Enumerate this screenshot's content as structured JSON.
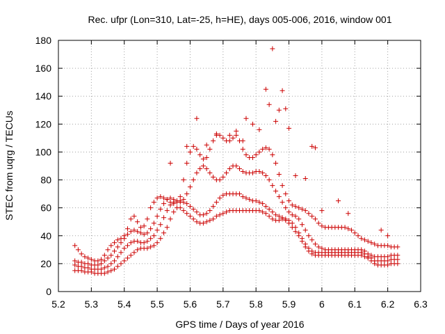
{
  "chart_data": {
    "type": "scatter",
    "title": "Rec. ufpr (Lon=310, Lat=-25, h=HE), days 005-006, 2016, window 001",
    "xlabel": "GPS time / Days of year 2016",
    "ylabel": "STEC from uqrg / TECUs",
    "xlim": [
      5.2,
      6.3
    ],
    "ylim": [
      0,
      180
    ],
    "xticks": [
      "5.2",
      "5.3",
      "5.4",
      "5.5",
      "5.6",
      "5.7",
      "5.8",
      "5.9",
      "6",
      "6.1",
      "6.2",
      "6.3"
    ],
    "yticks": [
      "0",
      "20",
      "40",
      "60",
      "80",
      "100",
      "120",
      "140",
      "160",
      "180"
    ],
    "grid": true,
    "marker": "plus",
    "color": "#cc0000",
    "series": [
      {
        "x": [
          5.25,
          5.26,
          5.27,
          5.28,
          5.29,
          5.3,
          5.31,
          5.32,
          5.33,
          5.34,
          5.35,
          5.36,
          5.37,
          5.38,
          5.39,
          5.4,
          5.41,
          5.42,
          5.43,
          5.44,
          5.45,
          5.46,
          5.47,
          5.48,
          5.49,
          5.5,
          5.51,
          5.52,
          5.53,
          5.54,
          5.55,
          5.56,
          5.57,
          5.58,
          5.59,
          5.6,
          5.61,
          5.62,
          5.63,
          5.64,
          5.65,
          5.66,
          5.67,
          5.68,
          5.69,
          5.7,
          5.71,
          5.72,
          5.73,
          5.74,
          5.75,
          5.76,
          5.77,
          5.78,
          5.79,
          5.8,
          5.81,
          5.82,
          5.83,
          5.84,
          5.85,
          5.86,
          5.87,
          5.88,
          5.89,
          5.9,
          5.91,
          5.92,
          5.93,
          5.94,
          5.95,
          5.96,
          5.97,
          5.98,
          5.99,
          6.0,
          6.01,
          6.02,
          6.03,
          6.04,
          6.05,
          6.06,
          6.07,
          6.08,
          6.09,
          6.1,
          6.11,
          6.12,
          6.13,
          6.14,
          6.15,
          6.16,
          6.17,
          6.18,
          6.19,
          6.2,
          6.21,
          6.22,
          6.23
        ],
        "y": [
          15,
          15,
          15,
          14,
          14,
          14,
          13,
          13,
          13,
          13,
          14,
          15,
          16,
          18,
          20,
          22,
          24,
          26,
          28,
          30,
          31,
          31,
          31,
          32,
          33,
          35,
          38,
          42,
          46,
          52,
          57,
          60,
          60,
          58,
          56,
          54,
          52,
          50,
          49,
          49,
          50,
          51,
          52,
          54,
          55,
          56,
          57,
          58,
          58,
          58,
          58,
          58,
          58,
          58,
          58,
          58,
          58,
          57,
          56,
          54,
          52,
          51,
          51,
          52,
          51,
          49,
          46,
          43,
          40,
          36,
          32,
          29,
          27,
          26,
          26,
          26,
          26,
          26,
          26,
          26,
          26,
          26,
          26,
          26,
          26,
          26,
          26,
          26,
          25,
          24,
          22,
          20,
          19,
          19,
          19,
          19,
          20,
          20,
          20
        ]
      },
      {
        "x": [
          5.25,
          5.26,
          5.27,
          5.28,
          5.29,
          5.3,
          5.31,
          5.32,
          5.33,
          5.34,
          5.35,
          5.36,
          5.37,
          5.38,
          5.39,
          5.4,
          5.41,
          5.42,
          5.43,
          5.44,
          5.45,
          5.46,
          5.47,
          5.48,
          5.49,
          5.5,
          5.51,
          5.52,
          5.53,
          5.54,
          5.55,
          5.56,
          5.57,
          5.58,
          5.59,
          5.6,
          5.61,
          5.62,
          5.63,
          5.64,
          5.65,
          5.66,
          5.67,
          5.68,
          5.69,
          5.7,
          5.71,
          5.72,
          5.73,
          5.74,
          5.75,
          5.76,
          5.77,
          5.78,
          5.79,
          5.8,
          5.81,
          5.82,
          5.83,
          5.84,
          5.85,
          5.86,
          5.87,
          5.88,
          5.89,
          5.9,
          5.91,
          5.92,
          5.93,
          5.94,
          5.95,
          5.96,
          5.97,
          5.98,
          5.99,
          6.0,
          6.01,
          6.02,
          6.03,
          6.04,
          6.05,
          6.06,
          6.07,
          6.08,
          6.09,
          6.1,
          6.11,
          6.12,
          6.13,
          6.14,
          6.15,
          6.16,
          6.17,
          6.18,
          6.19,
          6.2,
          6.21,
          6.22,
          6.23
        ],
        "y": [
          19,
          18,
          18,
          17,
          17,
          16,
          16,
          16,
          16,
          17,
          18,
          20,
          22,
          25,
          28,
          31,
          33,
          35,
          36,
          36,
          35,
          35,
          36,
          38,
          40,
          44,
          48,
          53,
          58,
          62,
          64,
          65,
          65,
          64,
          63,
          61,
          59,
          57,
          55,
          55,
          56,
          58,
          61,
          64,
          67,
          69,
          70,
          70,
          70,
          70,
          70,
          68,
          67,
          66,
          65,
          65,
          64,
          63,
          61,
          59,
          57,
          55,
          54,
          53,
          52,
          51,
          49,
          46,
          42,
          38,
          34,
          31,
          29,
          28,
          28,
          28,
          28,
          28,
          28,
          28,
          28,
          28,
          28,
          28,
          28,
          28,
          28,
          28,
          27,
          25,
          24,
          22,
          22,
          22,
          22,
          22,
          23,
          23,
          23
        ]
      },
      {
        "x": [
          5.25,
          5.26,
          5.27,
          5.28,
          5.29,
          5.3,
          5.31,
          5.32,
          5.33,
          5.34,
          5.35,
          5.36,
          5.37,
          5.38,
          5.39,
          5.4,
          5.41,
          5.42,
          5.43,
          5.44,
          5.45,
          5.46,
          5.47,
          5.48,
          5.49,
          5.5,
          5.51,
          5.52,
          5.53,
          5.54,
          5.55,
          5.56,
          5.57,
          5.58,
          5.59,
          5.6,
          5.61,
          5.62,
          5.63,
          5.64,
          5.65,
          5.66,
          5.67,
          5.68,
          5.69,
          5.7,
          5.71,
          5.72,
          5.73,
          5.74,
          5.75,
          5.76,
          5.77,
          5.78,
          5.79,
          5.8,
          5.81,
          5.82,
          5.83,
          5.84,
          5.85,
          5.86,
          5.87,
          5.88,
          5.89,
          5.9,
          5.91,
          5.92,
          5.93,
          5.94,
          5.95,
          5.96,
          5.97,
          5.98,
          5.99,
          6.0,
          6.01,
          6.02,
          6.03,
          6.04,
          6.05,
          6.06,
          6.07,
          6.08,
          6.09,
          6.1,
          6.11,
          6.12,
          6.13,
          6.14,
          6.15,
          6.16,
          6.17,
          6.18,
          6.19,
          6.2,
          6.21,
          6.22,
          6.23
        ],
        "y": [
          22,
          21,
          21,
          20,
          20,
          19,
          19,
          19,
          20,
          22,
          24,
          26,
          29,
          32,
          35,
          38,
          41,
          43,
          44,
          43,
          42,
          41,
          42,
          45,
          49,
          54,
          59,
          63,
          66,
          67,
          66,
          65,
          64,
          66,
          70,
          75,
          80,
          85,
          88,
          90,
          88,
          85,
          82,
          80,
          80,
          82,
          85,
          88,
          90,
          90,
          88,
          86,
          85,
          85,
          85,
          86,
          86,
          85,
          83,
          80,
          76,
          72,
          68,
          64,
          60,
          57,
          55,
          54,
          52,
          48,
          44,
          40,
          37,
          34,
          32,
          31,
          30,
          30,
          30,
          30,
          30,
          30,
          30,
          30,
          30,
          30,
          30,
          30,
          29,
          27,
          26,
          25,
          25,
          25,
          25,
          25,
          26,
          26,
          26
        ]
      },
      {
        "x": [
          5.25,
          5.26,
          5.27,
          5.28,
          5.29,
          5.3,
          5.31,
          5.32,
          5.33,
          5.34,
          5.35,
          5.36,
          5.37,
          5.38,
          5.39,
          5.4,
          5.41,
          5.42,
          5.43,
          5.44,
          5.45,
          5.46,
          5.47,
          5.48,
          5.49,
          5.5,
          5.51,
          5.52,
          5.53,
          5.54,
          5.55,
          5.56,
          5.57,
          5.58,
          5.59,
          5.6,
          5.61,
          5.62,
          5.63,
          5.64,
          5.65,
          5.66,
          5.67,
          5.68,
          5.69,
          5.7,
          5.71,
          5.72,
          5.73,
          5.74,
          5.75,
          5.76,
          5.77,
          5.78,
          5.79,
          5.8,
          5.81,
          5.82,
          5.83,
          5.84,
          5.85,
          5.86,
          5.87,
          5.88,
          5.89,
          5.9,
          5.91,
          5.92,
          5.93,
          5.94,
          5.95,
          5.96,
          5.97,
          5.98,
          5.99,
          6.0,
          6.01,
          6.02,
          6.03,
          6.04,
          6.05,
          6.06,
          6.07,
          6.08,
          6.09,
          6.1,
          6.11,
          6.12,
          6.13,
          6.14,
          6.15,
          6.16,
          6.17,
          6.18,
          6.19,
          6.2,
          6.21,
          6.22,
          6.23
        ],
        "y": [
          33,
          30,
          27,
          25,
          24,
          23,
          22,
          22,
          23,
          26,
          30,
          33,
          35,
          37,
          38,
          40,
          45,
          52,
          54,
          50,
          46,
          47,
          52,
          60,
          64,
          67,
          68,
          67,
          66,
          64,
          63,
          64,
          68,
          80,
          92,
          100,
          104,
          102,
          98,
          95,
          96,
          102,
          108,
          112,
          112,
          110,
          108,
          108,
          110,
          112,
          108,
          102,
          98,
          96,
          96,
          98,
          100,
          102,
          103,
          102,
          98,
          92,
          84,
          76,
          70,
          65,
          62,
          61,
          60,
          59,
          58,
          56,
          54,
          52,
          49,
          47,
          46,
          46,
          46,
          46,
          46,
          46,
          46,
          45,
          44,
          42,
          40,
          38,
          37,
          36,
          35,
          34,
          33,
          33,
          33,
          33,
          32,
          32,
          32
        ]
      },
      {
        "x": [
          5.54,
          5.59,
          5.62,
          5.65,
          5.68,
          5.72,
          5.74,
          5.76,
          5.77,
          5.79,
          5.81,
          5.83,
          5.84,
          5.85,
          5.86,
          5.87,
          5.88,
          5.89,
          5.9,
          5.92,
          5.95,
          5.97,
          5.98,
          6.0,
          6.05,
          6.08,
          6.18,
          6.2
        ],
        "y": [
          92,
          104,
          124,
          105,
          113,
          112,
          115,
          108,
          124,
          120,
          116,
          145,
          134,
          174,
          122,
          130,
          144,
          131,
          117,
          83,
          81,
          104,
          103,
          58,
          65,
          56,
          44,
          40
        ]
      }
    ]
  }
}
